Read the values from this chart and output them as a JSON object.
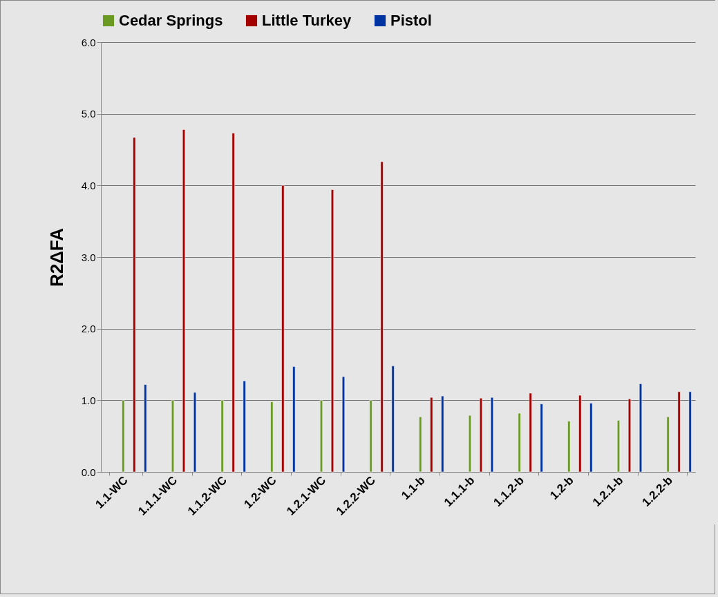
{
  "chart_data": {
    "type": "bar",
    "ylabel": "R2ΔFA",
    "categories": [
      "1.1-WC",
      "1.1.1-WC",
      "1.1.2-WC",
      "1.2-WC",
      "1.2.1-WC",
      "1.2.2-WC",
      "1.1-b",
      "1.1.1-b",
      "1.1.2-b",
      "1.2-b",
      "1.2.1-b",
      "1.2.2-b"
    ],
    "series": [
      {
        "name": "Cedar Springs",
        "color": "#6b9a23",
        "values": [
          1.0,
          1.0,
          1.0,
          0.98,
          1.0,
          1.0,
          0.77,
          0.79,
          0.82,
          0.71,
          0.72,
          0.77
        ]
      },
      {
        "name": "Little Turkey",
        "color": "#a40000",
        "values": [
          4.67,
          4.78,
          4.73,
          4.0,
          3.94,
          4.33,
          1.04,
          1.03,
          1.1,
          1.07,
          1.02,
          1.12
        ]
      },
      {
        "name": "Pistol",
        "color": "#0033a2",
        "values": [
          1.22,
          1.11,
          1.27,
          1.47,
          1.33,
          1.48,
          1.06,
          1.04,
          0.95,
          0.96,
          1.23,
          1.12
        ]
      }
    ],
    "ylim": [
      0,
      6
    ],
    "yticks": [
      {
        "value": 0,
        "label": "0.0"
      },
      {
        "value": 1,
        "label": "1.0"
      },
      {
        "value": 2,
        "label": "2.0"
      },
      {
        "value": 3,
        "label": "3.0"
      },
      {
        "value": 4,
        "label": "4.0"
      },
      {
        "value": 5,
        "label": "5.0"
      },
      {
        "value": 6,
        "label": "6.0"
      }
    ],
    "grid": "y",
    "legend": "top"
  }
}
